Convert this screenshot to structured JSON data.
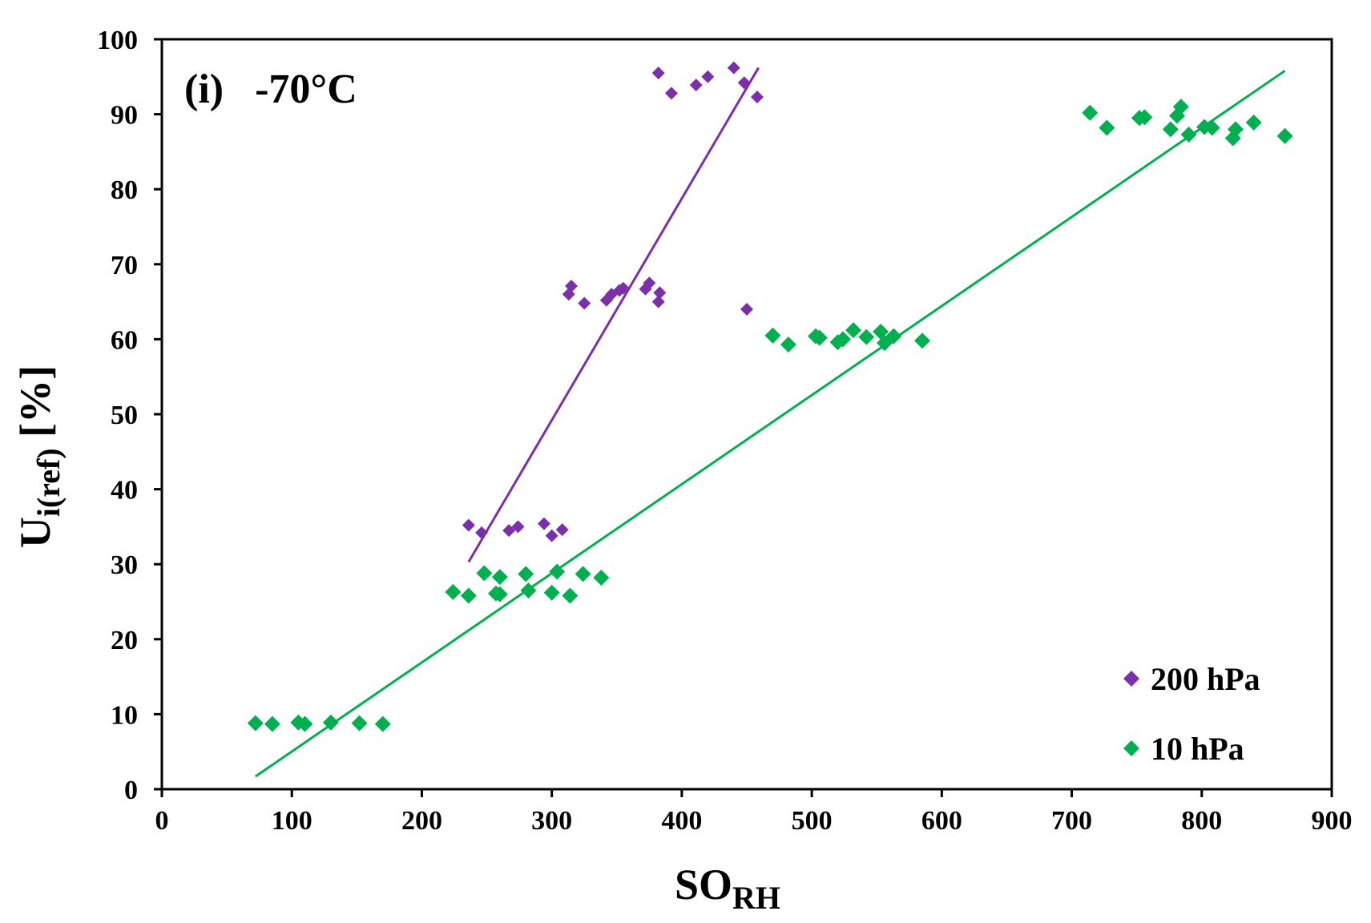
{
  "chart_data": {
    "type": "scatter",
    "title": "(i)   -70°C",
    "xlabel": {
      "main": "SO",
      "sub": "RH"
    },
    "ylabel": {
      "main": "U",
      "sub": "i(ref)",
      "unit": " [%]"
    },
    "xlim": [
      0,
      900
    ],
    "ylim": [
      0,
      100
    ],
    "xticks": [
      "0",
      "100",
      "200",
      "300",
      "400",
      "500",
      "600",
      "700",
      "800",
      "900"
    ],
    "yticks": [
      "0",
      "10",
      "20",
      "30",
      "40",
      "50",
      "60",
      "70",
      "80",
      "90",
      "100"
    ],
    "grid": false,
    "legend_position": "bottom-right",
    "series": [
      {
        "name": "200 hPa",
        "color": "#7b2fa8",
        "marker": "diamond-small",
        "x": [
          236,
          246,
          267,
          274,
          294,
          300,
          308,
          313,
          315,
          325,
          342,
          346,
          352,
          355,
          372,
          375,
          382,
          383,
          382,
          392,
          411,
          420,
          440,
          448,
          458,
          450
        ],
        "y": [
          35.2,
          34.2,
          34.5,
          35.0,
          35.4,
          33.8,
          34.6,
          66.0,
          67.1,
          64.8,
          65.2,
          66.0,
          66.5,
          66.8,
          66.7,
          67.5,
          65.0,
          66.2,
          95.5,
          92.8,
          93.9,
          95.0,
          96.2,
          94.2,
          92.3,
          64.0
        ],
        "trendline": {
          "x": [
            236,
            459
          ],
          "y": [
            30.3,
            96.2
          ]
        }
      },
      {
        "name": "10 hPa",
        "color": "#00b050",
        "marker": "diamond",
        "x": [
          72,
          85,
          105,
          110,
          130,
          152,
          170,
          224,
          236,
          248,
          257,
          260,
          260,
          280,
          282,
          300,
          304,
          314,
          324,
          338,
          470,
          482,
          503,
          506,
          520,
          524,
          532,
          542,
          553,
          556,
          563,
          585,
          714,
          727,
          752,
          756,
          776,
          781,
          784,
          790,
          802,
          808,
          824,
          826,
          840,
          864
        ],
        "y": [
          8.8,
          8.7,
          8.9,
          8.7,
          8.9,
          8.8,
          8.7,
          26.3,
          25.8,
          28.8,
          26.1,
          28.3,
          26.0,
          28.7,
          26.5,
          26.2,
          29.0,
          25.8,
          28.7,
          28.2,
          60.5,
          59.3,
          60.4,
          60.2,
          59.6,
          60.0,
          61.2,
          60.3,
          61.0,
          59.5,
          60.4,
          59.8,
          90.2,
          88.2,
          89.5,
          89.6,
          88.0,
          89.8,
          91.0,
          87.3,
          88.3,
          88.2,
          86.8,
          88.0,
          88.9,
          87.1
        ],
        "trendline": {
          "x": [
            72,
            864
          ],
          "y": [
            1.7,
            95.8
          ]
        }
      }
    ]
  }
}
